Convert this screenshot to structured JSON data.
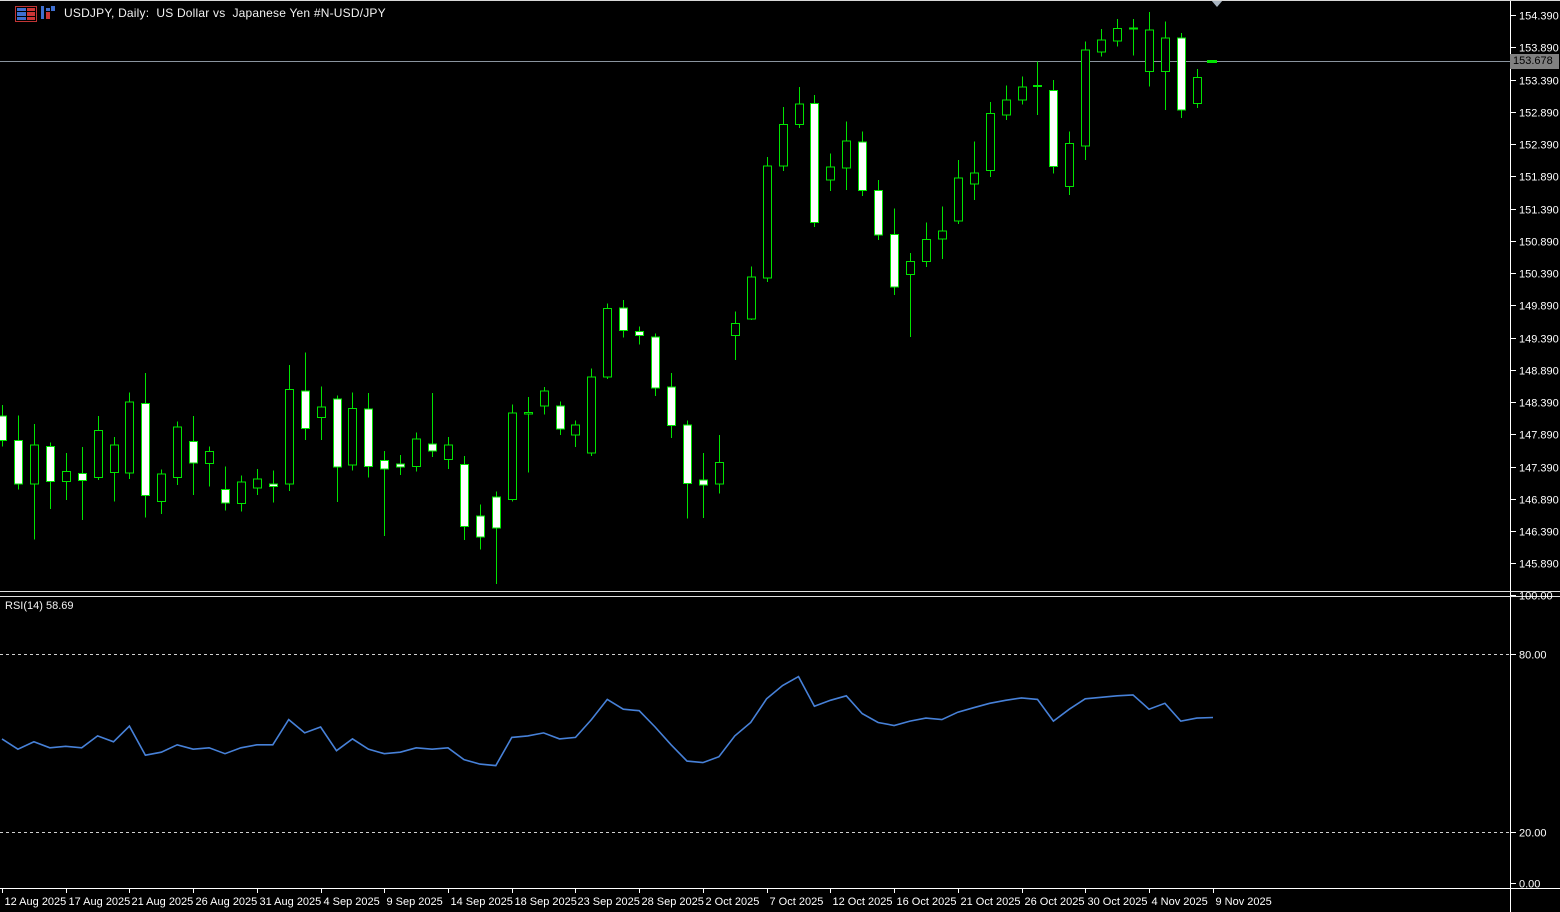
{
  "window": {
    "title": "USDJPY, Daily:  US Dollar vs  Japanese Yen #N-USD/JPY"
  },
  "icons": {
    "table_icon": "ohlc-table-icon",
    "chart_icon": "bar-chart-icon",
    "scroll_marker": "chart-shift-triangle"
  },
  "colors": {
    "background": "#000000",
    "candle_outline": "#00e400",
    "bull_body": "#000000",
    "bear_body": "#ffffff",
    "rsi_line": "#4781d8",
    "level_dashed": "#d0d0d0",
    "current_price_line": "#8a949e",
    "axis_text": "#ffffff",
    "price_box_bg": "#808080",
    "separator": "#e0e0e0",
    "triangle": "#a8b4c0"
  },
  "price_axis": {
    "current_price": "153.678",
    "labels": [
      "154.390",
      "153.890",
      "153.390",
      "152.890",
      "152.390",
      "151.890",
      "151.390",
      "150.890",
      "150.390",
      "149.890",
      "149.390",
      "148.890",
      "148.390",
      "147.890",
      "147.390",
      "146.890",
      "146.390",
      "145.890"
    ]
  },
  "rsi_pane": {
    "label": "RSI(14)",
    "value": "58.69",
    "axis_labels": [
      "100.00",
      "80.00",
      "20.00",
      "0.00"
    ],
    "upper_level": 80,
    "lower_level": 20
  },
  "time_axis": {
    "labels": [
      "12 Aug 2025",
      "17 Aug 2025",
      "21 Aug 2025",
      "26 Aug 2025",
      "31 Aug 2025",
      "4 Sep 2025",
      "9 Sep 2025",
      "14 Sep 2025",
      "18 Sep 2025",
      "23 Sep 2025",
      "28 Sep 2025",
      "2 Oct 2025",
      "7 Oct 2025",
      "12 Oct 2025",
      "16 Oct 2025",
      "21 Oct 2025",
      "26 Oct 2025",
      "30 Oct 2025",
      "4 Nov 2025",
      "9 Nov 2025"
    ]
  },
  "chart_data": {
    "type": "candlestick",
    "symbol": "USDJPY",
    "timeframe": "Daily",
    "price_range": [
      145.39,
      154.62
    ],
    "price_ticks": [
      154.39,
      153.89,
      153.39,
      152.89,
      152.39,
      151.89,
      151.39,
      150.89,
      150.39,
      149.89,
      149.39,
      148.89,
      148.39,
      147.89,
      147.39,
      146.89,
      146.39,
      145.89
    ],
    "current_price": 153.678,
    "bars_per_label": 4,
    "candles_ohlc": [
      [
        148.17,
        148.34,
        147.7,
        147.79
      ],
      [
        147.79,
        148.18,
        147.03,
        147.12
      ],
      [
        147.12,
        148.05,
        146.26,
        147.72
      ],
      [
        147.7,
        147.76,
        146.73,
        147.16
      ],
      [
        147.16,
        147.6,
        146.87,
        147.31
      ],
      [
        147.28,
        147.69,
        146.56,
        147.17
      ],
      [
        147.22,
        148.17,
        147.18,
        147.95
      ],
      [
        147.3,
        147.85,
        146.85,
        147.72
      ],
      [
        147.29,
        148.54,
        147.2,
        148.39
      ],
      [
        148.37,
        148.84,
        146.6,
        146.94
      ],
      [
        146.85,
        147.34,
        146.65,
        147.27
      ],
      [
        147.22,
        148.09,
        147.1,
        148.0
      ],
      [
        147.78,
        148.17,
        146.95,
        147.44
      ],
      [
        147.44,
        147.7,
        147.08,
        147.62
      ],
      [
        147.03,
        147.39,
        146.71,
        146.82
      ],
      [
        146.82,
        147.25,
        146.69,
        147.15
      ],
      [
        147.06,
        147.35,
        146.95,
        147.2
      ],
      [
        147.12,
        147.33,
        146.83,
        147.08
      ],
      [
        147.12,
        148.96,
        147.01,
        148.58
      ],
      [
        148.56,
        149.16,
        147.8,
        147.98
      ],
      [
        148.15,
        148.63,
        147.8,
        148.31
      ],
      [
        148.44,
        148.49,
        146.84,
        147.38
      ],
      [
        147.41,
        148.54,
        147.33,
        148.29
      ],
      [
        148.28,
        148.53,
        147.22,
        147.39
      ],
      [
        147.48,
        147.63,
        146.31,
        147.35
      ],
      [
        147.43,
        147.57,
        147.26,
        147.38
      ],
      [
        147.39,
        147.92,
        147.31,
        147.82
      ],
      [
        147.74,
        148.53,
        147.54,
        147.63
      ],
      [
        147.5,
        147.85,
        147.35,
        147.72
      ],
      [
        147.42,
        147.55,
        146.25,
        146.46
      ],
      [
        146.62,
        146.8,
        146.1,
        146.3
      ],
      [
        146.92,
        147.0,
        145.57,
        146.44
      ],
      [
        146.88,
        148.35,
        146.85,
        148.22
      ],
      [
        148.2,
        148.47,
        147.3,
        148.23
      ],
      [
        148.33,
        148.62,
        148.2,
        148.56
      ],
      [
        148.33,
        148.4,
        147.88,
        147.97
      ],
      [
        147.88,
        148.1,
        147.69,
        148.03
      ],
      [
        147.6,
        148.91,
        147.55,
        148.78
      ],
      [
        148.78,
        149.92,
        148.75,
        149.84
      ],
      [
        149.85,
        149.97,
        149.39,
        149.5
      ],
      [
        149.48,
        149.56,
        149.28,
        149.42
      ],
      [
        149.4,
        149.45,
        148.48,
        148.61
      ],
      [
        148.62,
        148.84,
        147.83,
        148.03
      ],
      [
        148.03,
        148.1,
        146.58,
        147.13
      ],
      [
        147.18,
        147.6,
        146.59,
        147.1
      ],
      [
        147.12,
        147.88,
        146.97,
        147.45
      ],
      [
        149.42,
        149.79,
        149.04,
        149.61
      ],
      [
        149.68,
        150.49,
        149.66,
        150.33
      ],
      [
        150.31,
        152.19,
        150.25,
        152.05
      ],
      [
        152.05,
        152.96,
        151.97,
        152.69
      ],
      [
        152.69,
        153.27,
        152.64,
        153.01
      ],
      [
        153.02,
        153.15,
        151.1,
        151.17
      ],
      [
        151.83,
        152.24,
        151.66,
        152.03
      ],
      [
        152.02,
        152.74,
        151.68,
        152.44
      ],
      [
        152.42,
        152.58,
        151.58,
        151.67
      ],
      [
        151.67,
        151.83,
        150.9,
        150.98
      ],
      [
        150.99,
        151.39,
        150.05,
        150.17
      ],
      [
        150.37,
        150.7,
        149.4,
        150.57
      ],
      [
        150.57,
        151.17,
        150.48,
        150.91
      ],
      [
        150.92,
        151.42,
        150.61,
        151.04
      ],
      [
        151.2,
        152.14,
        151.15,
        151.86
      ],
      [
        151.77,
        152.43,
        151.52,
        151.94
      ],
      [
        151.98,
        153.04,
        151.88,
        152.86
      ],
      [
        152.84,
        153.3,
        152.76,
        153.07
      ],
      [
        153.07,
        153.44,
        153.0,
        153.27
      ],
      [
        153.3,
        153.67,
        152.84,
        153.28
      ],
      [
        153.22,
        153.38,
        151.93,
        152.04
      ],
      [
        151.73,
        152.58,
        151.6,
        152.4
      ],
      [
        152.36,
        153.98,
        152.14,
        153.85
      ],
      [
        153.82,
        154.17,
        153.75,
        154.0
      ],
      [
        153.99,
        154.33,
        153.9,
        154.18
      ],
      [
        154.17,
        154.33,
        153.76,
        154.19
      ],
      [
        153.51,
        154.44,
        153.28,
        154.16
      ],
      [
        153.51,
        154.29,
        152.92,
        154.03
      ],
      [
        154.03,
        154.11,
        152.79,
        152.92
      ],
      [
        153.02,
        153.55,
        152.95,
        153.42
      ]
    ],
    "rsi": {
      "name": "RSI(14)",
      "last_value": 58.69,
      "range": [
        0,
        100
      ],
      "levels": [
        80,
        20
      ],
      "values": [
        51.5,
        48,
        50.5,
        48.5,
        49,
        48.5,
        52.5,
        50.5,
        55.8,
        46,
        47,
        49.5,
        48,
        48.5,
        46.5,
        48.5,
        49.5,
        49.5,
        58,
        53.5,
        55.5,
        47.5,
        51.5,
        48,
        46.5,
        47,
        48.5,
        48,
        48.5,
        44.5,
        43,
        42.5,
        52,
        52.5,
        53.5,
        51.5,
        52,
        58,
        64.8,
        61.5,
        61,
        55.5,
        49.5,
        44,
        43.5,
        45.5,
        52.5,
        57,
        65,
        69.5,
        72.5,
        62.5,
        64.5,
        66,
        60,
        57,
        56,
        57.5,
        58.5,
        58,
        60.5,
        62,
        63.5,
        64.5,
        65.3,
        64.8,
        57.5,
        61.5,
        65,
        65.5,
        66,
        66.3,
        61.5,
        63.5,
        57.5,
        58.5
      ]
    },
    "x_categories": [
      "12 Aug 2025",
      "17 Aug 2025",
      "21 Aug 2025",
      "26 Aug 2025",
      "31 Aug 2025",
      "4 Sep 2025",
      "9 Sep 2025",
      "14 Sep 2025",
      "18 Sep 2025",
      "23 Sep 2025",
      "28 Sep 2025",
      "2 Oct 2025",
      "7 Oct 2025",
      "12 Oct 2025",
      "16 Oct 2025",
      "21 Oct 2025",
      "26 Oct 2025",
      "30 Oct 2025",
      "4 Nov 2025",
      "9 Nov 2025"
    ]
  }
}
